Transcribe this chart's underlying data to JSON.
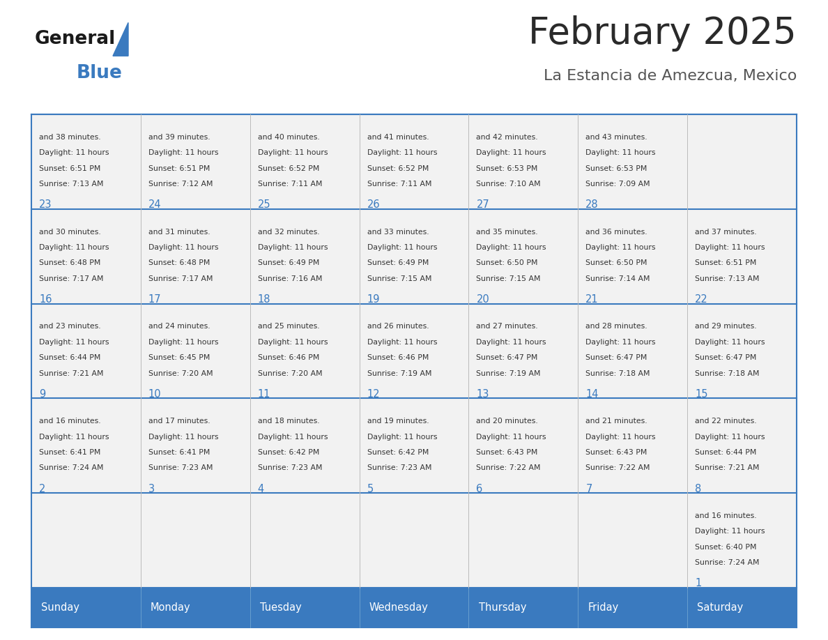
{
  "title": "February 2025",
  "subtitle": "La Estancia de Amezcua, Mexico",
  "days_of_week": [
    "Sunday",
    "Monday",
    "Tuesday",
    "Wednesday",
    "Thursday",
    "Friday",
    "Saturday"
  ],
  "header_bg": "#3a7abf",
  "header_text": "#ffffff",
  "cell_bg": "#f2f2f2",
  "line_color": "#3a7abf",
  "day_number_color": "#3a7abf",
  "text_color": "#333333",
  "title_color": "#2a2a2a",
  "subtitle_color": "#555555",
  "logo_general_color": "#1a1a1a",
  "logo_blue_color": "#3a7abf",
  "logo_triangle_color": "#3a7abf",
  "separator_color": "#3a7abf",
  "calendar": [
    [
      null,
      null,
      null,
      null,
      null,
      null,
      {
        "day": 1,
        "sunrise": "7:24 AM",
        "sunset": "6:40 PM",
        "daylight": "11 hours and 16 minutes."
      }
    ],
    [
      {
        "day": 2,
        "sunrise": "7:24 AM",
        "sunset": "6:41 PM",
        "daylight": "11 hours and 16 minutes."
      },
      {
        "day": 3,
        "sunrise": "7:23 AM",
        "sunset": "6:41 PM",
        "daylight": "11 hours and 17 minutes."
      },
      {
        "day": 4,
        "sunrise": "7:23 AM",
        "sunset": "6:42 PM",
        "daylight": "11 hours and 18 minutes."
      },
      {
        "day": 5,
        "sunrise": "7:23 AM",
        "sunset": "6:42 PM",
        "daylight": "11 hours and 19 minutes."
      },
      {
        "day": 6,
        "sunrise": "7:22 AM",
        "sunset": "6:43 PM",
        "daylight": "11 hours and 20 minutes."
      },
      {
        "day": 7,
        "sunrise": "7:22 AM",
        "sunset": "6:43 PM",
        "daylight": "11 hours and 21 minutes."
      },
      {
        "day": 8,
        "sunrise": "7:21 AM",
        "sunset": "6:44 PM",
        "daylight": "11 hours and 22 minutes."
      }
    ],
    [
      {
        "day": 9,
        "sunrise": "7:21 AM",
        "sunset": "6:44 PM",
        "daylight": "11 hours and 23 minutes."
      },
      {
        "day": 10,
        "sunrise": "7:20 AM",
        "sunset": "6:45 PM",
        "daylight": "11 hours and 24 minutes."
      },
      {
        "day": 11,
        "sunrise": "7:20 AM",
        "sunset": "6:46 PM",
        "daylight": "11 hours and 25 minutes."
      },
      {
        "day": 12,
        "sunrise": "7:19 AM",
        "sunset": "6:46 PM",
        "daylight": "11 hours and 26 minutes."
      },
      {
        "day": 13,
        "sunrise": "7:19 AM",
        "sunset": "6:47 PM",
        "daylight": "11 hours and 27 minutes."
      },
      {
        "day": 14,
        "sunrise": "7:18 AM",
        "sunset": "6:47 PM",
        "daylight": "11 hours and 28 minutes."
      },
      {
        "day": 15,
        "sunrise": "7:18 AM",
        "sunset": "6:47 PM",
        "daylight": "11 hours and 29 minutes."
      }
    ],
    [
      {
        "day": 16,
        "sunrise": "7:17 AM",
        "sunset": "6:48 PM",
        "daylight": "11 hours and 30 minutes."
      },
      {
        "day": 17,
        "sunrise": "7:17 AM",
        "sunset": "6:48 PM",
        "daylight": "11 hours and 31 minutes."
      },
      {
        "day": 18,
        "sunrise": "7:16 AM",
        "sunset": "6:49 PM",
        "daylight": "11 hours and 32 minutes."
      },
      {
        "day": 19,
        "sunrise": "7:15 AM",
        "sunset": "6:49 PM",
        "daylight": "11 hours and 33 minutes."
      },
      {
        "day": 20,
        "sunrise": "7:15 AM",
        "sunset": "6:50 PM",
        "daylight": "11 hours and 35 minutes."
      },
      {
        "day": 21,
        "sunrise": "7:14 AM",
        "sunset": "6:50 PM",
        "daylight": "11 hours and 36 minutes."
      },
      {
        "day": 22,
        "sunrise": "7:13 AM",
        "sunset": "6:51 PM",
        "daylight": "11 hours and 37 minutes."
      }
    ],
    [
      {
        "day": 23,
        "sunrise": "7:13 AM",
        "sunset": "6:51 PM",
        "daylight": "11 hours and 38 minutes."
      },
      {
        "day": 24,
        "sunrise": "7:12 AM",
        "sunset": "6:51 PM",
        "daylight": "11 hours and 39 minutes."
      },
      {
        "day": 25,
        "sunrise": "7:11 AM",
        "sunset": "6:52 PM",
        "daylight": "11 hours and 40 minutes."
      },
      {
        "day": 26,
        "sunrise": "7:11 AM",
        "sunset": "6:52 PM",
        "daylight": "11 hours and 41 minutes."
      },
      {
        "day": 27,
        "sunrise": "7:10 AM",
        "sunset": "6:53 PM",
        "daylight": "11 hours and 42 minutes."
      },
      {
        "day": 28,
        "sunrise": "7:09 AM",
        "sunset": "6:53 PM",
        "daylight": "11 hours and 43 minutes."
      },
      null
    ]
  ]
}
